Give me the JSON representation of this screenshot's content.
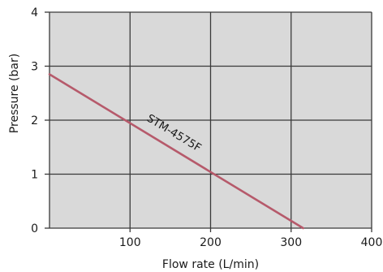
{
  "chart_data": {
    "type": "line",
    "xlabel": "Flow rate (L/min)",
    "ylabel": "Pressure (bar)",
    "xlim": [
      0,
      400
    ],
    "ylim": [
      0,
      4
    ],
    "xticks": [
      100,
      200,
      300,
      400
    ],
    "yticks": [
      0,
      1,
      2,
      3,
      4
    ],
    "grid": true,
    "plot_background": "#d9d9d9",
    "grid_color": "#3a3a3a",
    "series": [
      {
        "name": "STM-4575F",
        "color": "#b65a6b",
        "x": [
          0,
          315
        ],
        "y": [
          2.85,
          0
        ]
      }
    ]
  }
}
